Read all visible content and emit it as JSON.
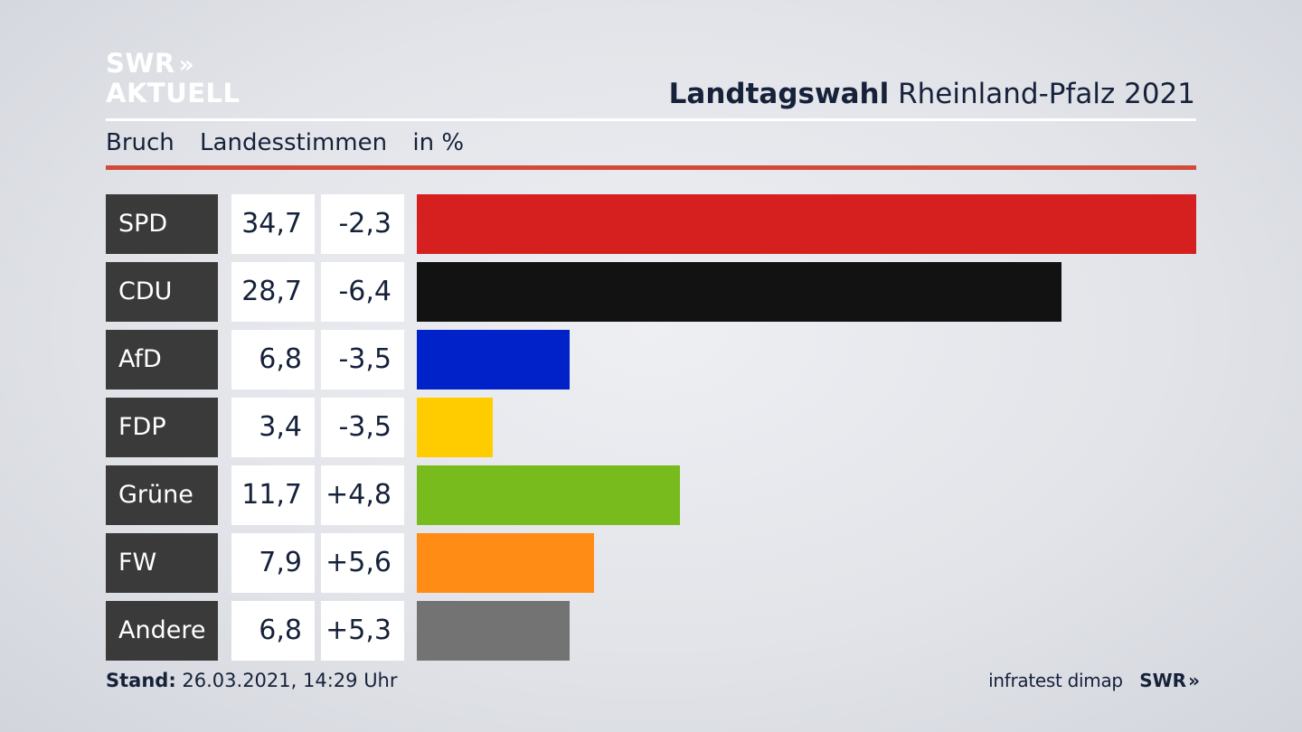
{
  "header": {
    "logo_line1": "SWR",
    "logo_arrows": "»",
    "logo_line2": "AKTUELL",
    "title_bold": "Landtagswahl",
    "title_rest": "Rheinland-Pfalz 2021"
  },
  "subtitle": {
    "part1": "Bruch",
    "part2": "Landesstimmen",
    "part3": "in %"
  },
  "chart_data": {
    "type": "bar",
    "categories": [
      "SPD",
      "CDU",
      "AfD",
      "FDP",
      "Grüne",
      "FW",
      "Andere"
    ],
    "values": [
      "34,7",
      "28,7",
      "6,8",
      "3,4",
      "11,7",
      "7,9",
      "6,8"
    ],
    "changes": [
      "-2,3",
      "-6,4",
      "-3,5",
      "-3,5",
      "+4,8",
      "+5,6",
      "+5,3"
    ],
    "numeric_values": [
      34.7,
      28.7,
      6.8,
      3.4,
      11.7,
      7.9,
      6.8
    ],
    "colors": [
      "#d61f1f",
      "#121212",
      "#0022c8",
      "#ffcc00",
      "#77bb1c",
      "#ff8c15",
      "#737373"
    ],
    "xlim": [
      0,
      34.7
    ],
    "grid": false
  },
  "footer": {
    "stand_label": "Stand:",
    "stand_value": "26.03.2021, 14:29 Uhr",
    "source": "infratest dimap",
    "brand": "SWR",
    "brand_arrows": "»"
  }
}
